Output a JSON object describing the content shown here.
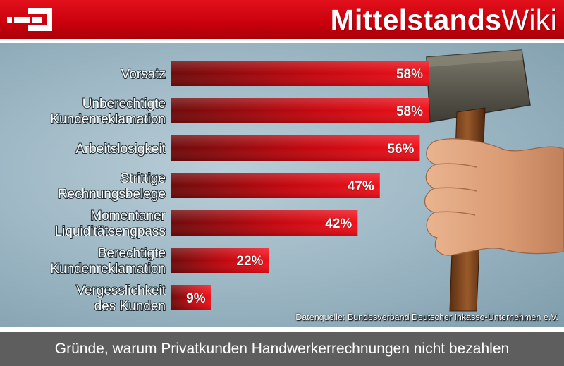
{
  "header": {
    "brand_bold": "Mittelstands",
    "brand_regular": "Wiki"
  },
  "colors": {
    "header_red": "#d1000f",
    "bar_red": "#e1000f",
    "bar_dark": "#6e0b0b",
    "footer_gray": "#5e5e5e",
    "background_blue": "#9db7c4"
  },
  "chart_data": {
    "type": "bar",
    "orientation": "horizontal",
    "categories": [
      [
        "Vorsatz"
      ],
      [
        "Unberechtigte",
        "Kundenreklamation"
      ],
      [
        "Arbeitslosigkeit"
      ],
      [
        "Strittige",
        "Rechnungsbelege"
      ],
      [
        "Momentaner",
        "Liquiditätsengpass"
      ],
      [
        "Berechtigte",
        "Kundenreklamation"
      ],
      [
        "Vergesslichkeit",
        "des Kunden"
      ]
    ],
    "values": [
      58,
      58,
      56,
      47,
      42,
      22,
      9
    ],
    "value_labels": [
      "58%",
      "58%",
      "56%",
      "47%",
      "42%",
      "22%",
      "9%"
    ],
    "unit": "%",
    "xlim": [
      0,
      58
    ],
    "grid": false,
    "legend": "none"
  },
  "source_note": "Datenquelle: Bundesverband Deutscher Inkasso-Unternehmen e.V.",
  "caption": "Gründe, warum Privatkunden Handwerkerrechnungen nicht bezahlen",
  "illustration": {
    "icon": "hammer-in-fist-icon"
  }
}
